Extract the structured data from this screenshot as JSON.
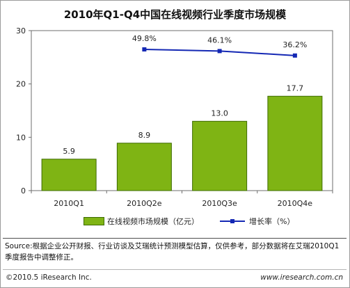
{
  "chart_data": {
    "type": "bar",
    "title": "2010年Q1-Q4中国在线视频行业季度市场规模",
    "categories": [
      "2010Q1",
      "2010Q2e",
      "2010Q3e",
      "2010Q4e"
    ],
    "series": [
      {
        "name": "在线视频市场规模（亿元）",
        "type": "bar",
        "values": [
          5.9,
          8.9,
          13.0,
          17.7
        ],
        "labels": [
          "5.9",
          "8.9",
          "13.0",
          "17.7"
        ],
        "color": "#7fb414"
      },
      {
        "name": "增长率（%）",
        "type": "line",
        "values": [
          null,
          49.8,
          46.1,
          36.2
        ],
        "labels": [
          "",
          "49.8%",
          "46.1%",
          "36.2%"
        ],
        "color": "#1428b4"
      }
    ],
    "ylim": [
      0,
      30
    ],
    "yticks": [
      0,
      10,
      20,
      30
    ],
    "grid": false,
    "legend": "bottom"
  },
  "footer": {
    "source": "Source:根据企业公开财报、行业访谈及艾瑞统计预测模型估算，仅供参考，部分数据将在艾瑞2010Q1季度报告中调整修正。",
    "copyright": "©2010.5 iResearch Inc.",
    "website": "www.iresearch.com.cn"
  }
}
